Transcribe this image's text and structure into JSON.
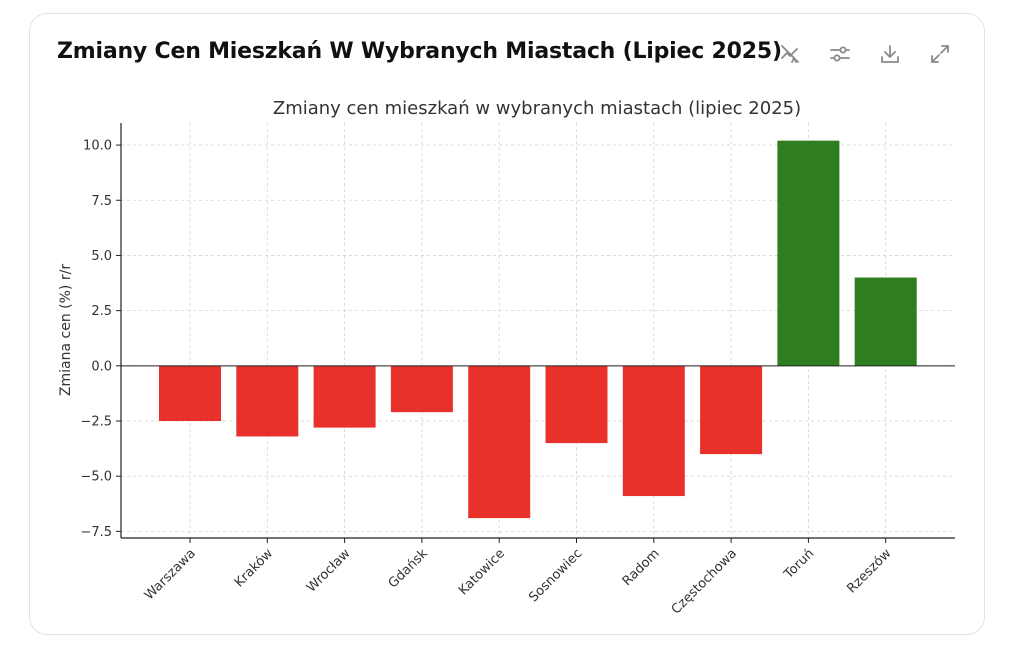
{
  "card": {
    "title": "Zmiany Cen Mieszkań W Wybranych Miastach (Lipiec 2025)",
    "icons": [
      "chart-toggle-icon",
      "settings-sliders-icon",
      "download-icon",
      "expand-icon"
    ]
  },
  "colors": {
    "negative": "#e8312a",
    "positive": "#2e7d1f",
    "grid": "#d3d3d3",
    "axis": "#222222"
  },
  "chart_data": {
    "type": "bar",
    "title": "Zmiany cen mieszkań w wybranych miastach (lipiec 2025)",
    "xlabel": "",
    "ylabel": "Zmiana cen (%) r/r",
    "categories": [
      "Warszawa",
      "Kraków",
      "Wrocław",
      "Gdańsk",
      "Katowice",
      "Sosnowiec",
      "Radom",
      "Częstochowa",
      "Toruń",
      "Rzeszów"
    ],
    "values": [
      -2.5,
      -3.2,
      -2.8,
      -2.1,
      -6.9,
      -3.5,
      -5.9,
      -4.0,
      10.2,
      4.0
    ],
    "yticks": [
      -7.5,
      -5.0,
      -2.5,
      0.0,
      2.5,
      5.0,
      7.5,
      10.0
    ],
    "ytick_labels": [
      "−7.5",
      "−5.0",
      "−2.5",
      "0.0",
      "2.5",
      "5.0",
      "7.5",
      "10.0"
    ],
    "ylim": [
      -7.8,
      11.0
    ],
    "grid": true,
    "grid_style": "dashed"
  }
}
